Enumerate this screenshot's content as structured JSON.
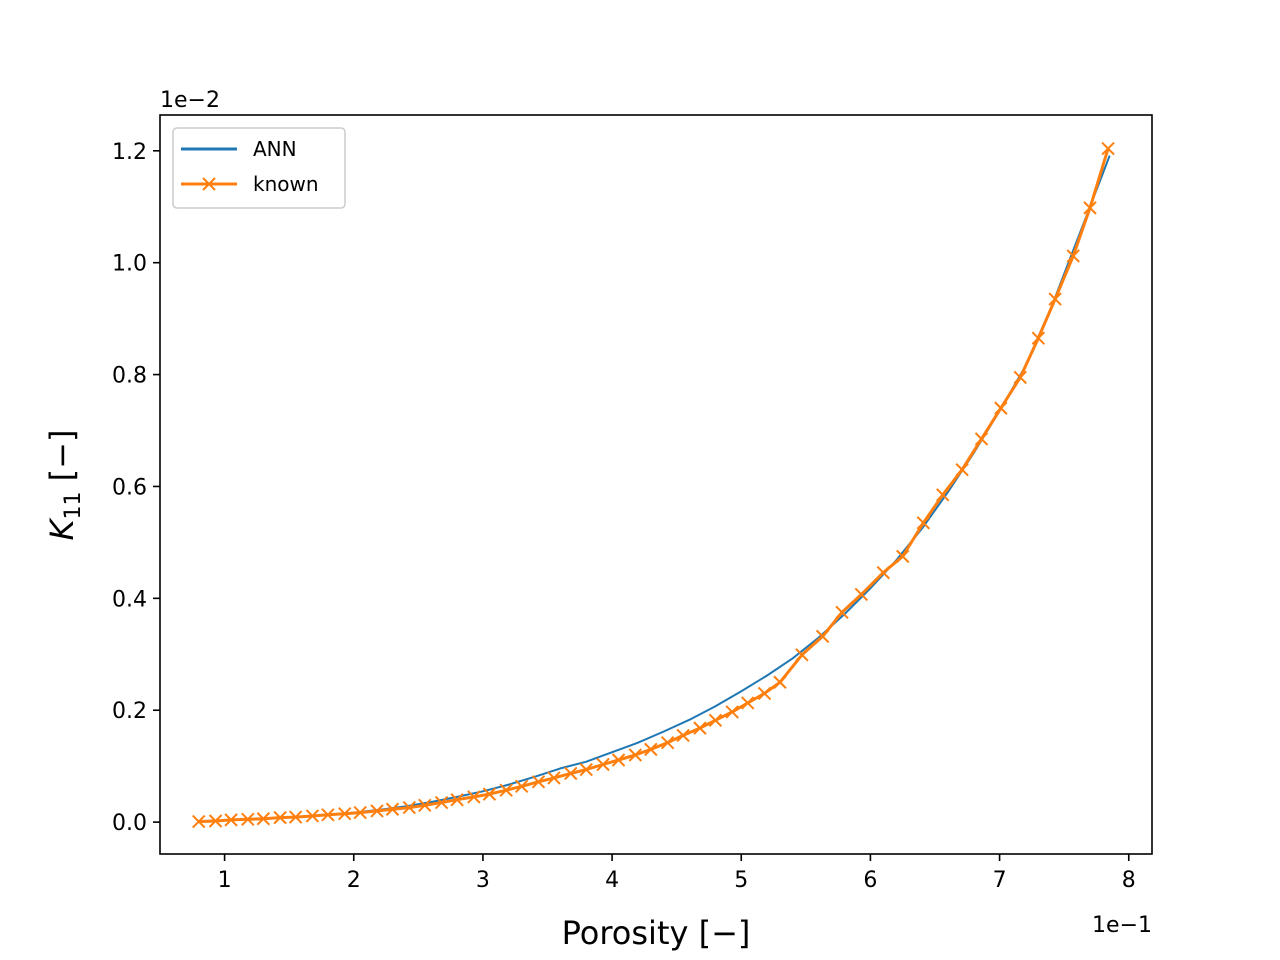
{
  "chart_data": {
    "type": "line",
    "xlabel": "Porosity [−]",
    "ylabel_main": "K",
    "ylabel_sub": "11",
    "ylabel_suffix": " [−]",
    "x_offset_label": "1e−1",
    "y_offset_label": "1e−2",
    "xlim": [
      0.5,
      8.18
    ],
    "ylim": [
      -0.057,
      1.264
    ],
    "x_ticks": [
      1,
      2,
      3,
      4,
      5,
      6,
      7,
      8
    ],
    "x_tick_labels": [
      "1",
      "2",
      "3",
      "4",
      "5",
      "6",
      "7",
      "8"
    ],
    "y_ticks": [
      0.0,
      0.2,
      0.4,
      0.6,
      0.8,
      1.0,
      1.2
    ],
    "y_tick_labels": [
      "0.0",
      "0.2",
      "0.4",
      "0.6",
      "0.8",
      "1.0",
      "1.2"
    ],
    "grid": false,
    "legend_position": "upper-left",
    "series": [
      {
        "name": "ANN",
        "color": "#1f77b4",
        "marker": "none",
        "x": [
          0.82,
          1.0,
          1.2,
          1.4,
          1.6,
          1.8,
          2.0,
          2.2,
          2.4,
          2.6,
          2.8,
          3.0,
          3.2,
          3.4,
          3.6,
          3.8,
          4.0,
          4.2,
          4.4,
          4.6,
          4.8,
          5.0,
          5.2,
          5.4,
          5.6,
          5.8,
          6.0,
          6.2,
          6.4,
          6.6,
          6.8,
          7.0,
          7.2,
          7.4,
          7.6,
          7.85
        ],
        "y": [
          0.002,
          0.003,
          0.005,
          0.007,
          0.01,
          0.013,
          0.017,
          0.022,
          0.028,
          0.036,
          0.045,
          0.055,
          0.067,
          0.081,
          0.096,
          0.108,
          0.125,
          0.142,
          0.162,
          0.183,
          0.207,
          0.234,
          0.262,
          0.293,
          0.33,
          0.372,
          0.418,
          0.468,
          0.525,
          0.59,
          0.66,
          0.735,
          0.815,
          0.92,
          1.04,
          1.19
        ]
      },
      {
        "name": "known",
        "color": "#ff7f0e",
        "marker": "x",
        "x": [
          0.8,
          0.93,
          1.05,
          1.18,
          1.3,
          1.43,
          1.55,
          1.68,
          1.8,
          1.93,
          2.05,
          2.18,
          2.3,
          2.43,
          2.55,
          2.68,
          2.8,
          2.93,
          3.05,
          3.18,
          3.3,
          3.43,
          3.55,
          3.68,
          3.8,
          3.93,
          4.05,
          4.18,
          4.3,
          4.43,
          4.55,
          4.68,
          4.8,
          4.93,
          5.05,
          5.18,
          5.3,
          5.47,
          5.63,
          5.78,
          5.93,
          6.1,
          6.25,
          6.41,
          6.56,
          6.71,
          6.86,
          7.01,
          7.16,
          7.3,
          7.43,
          7.57,
          7.7,
          7.84
        ],
        "y": [
          0.001,
          0.002,
          0.004,
          0.005,
          0.006,
          0.008,
          0.009,
          0.011,
          0.013,
          0.015,
          0.017,
          0.02,
          0.023,
          0.026,
          0.03,
          0.035,
          0.04,
          0.045,
          0.05,
          0.057,
          0.064,
          0.072,
          0.079,
          0.087,
          0.094,
          0.103,
          0.111,
          0.12,
          0.13,
          0.142,
          0.155,
          0.168,
          0.182,
          0.197,
          0.213,
          0.23,
          0.25,
          0.299,
          0.332,
          0.375,
          0.407,
          0.446,
          0.475,
          0.535,
          0.585,
          0.63,
          0.685,
          0.74,
          0.795,
          0.865,
          0.935,
          1.012,
          1.098,
          1.204
        ]
      }
    ]
  }
}
